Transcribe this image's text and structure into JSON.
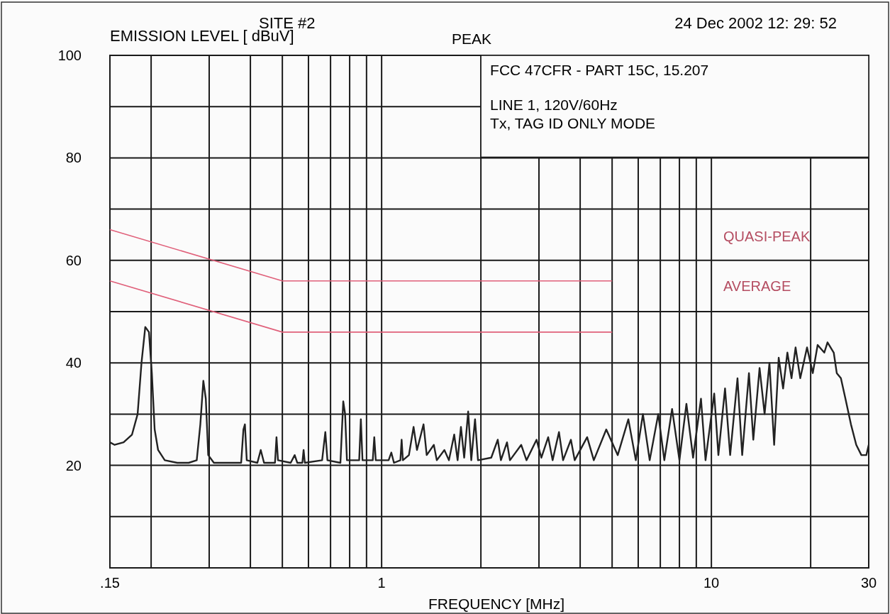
{
  "chart_data": {
    "type": "line",
    "title": "SITE #2",
    "ylabel": "EMISSION LEVEL [  dBuV]",
    "xlabel": "FREQUENCY  [MHz]",
    "annotations": [
      "PEAK",
      "24 Dec 2002    12: 29: 52",
      "FCC 47CFR - PART 15C, 15.207",
      "LINE 1, 120V/60Hz",
      "Tx, TAG ID ONLY MODE"
    ],
    "log": "x",
    "grid": true,
    "legend": "right",
    "marker": "none",
    "line_style": "solid",
    "xlim": [
      0.15,
      30
    ],
    "xticks": [
      {
        "value": 0.15,
        "label": ".15"
      },
      {
        "value": 0.2,
        "label": null
      },
      {
        "value": 0.3,
        "label": null
      },
      {
        "value": 0.4,
        "label": null
      },
      {
        "value": 0.5,
        "label": null
      },
      {
        "value": 0.6,
        "label": null
      },
      {
        "value": 0.7,
        "label": null
      },
      {
        "value": 0.8,
        "label": null
      },
      {
        "value": 0.9,
        "label": null
      },
      1,
      {
        "value": 2,
        "label": null
      },
      {
        "value": 3,
        "label": null
      },
      {
        "value": 4,
        "label": null
      },
      {
        "value": 5,
        "label": null
      },
      {
        "value": 6,
        "label": null
      },
      {
        "value": 7,
        "label": null
      },
      {
        "value": 8,
        "label": null
      },
      {
        "value": 9,
        "label": null
      },
      10,
      {
        "value": 20,
        "label": null
      },
      30
    ],
    "ylim": [
      0,
      100
    ],
    "yticks": [
      {
        "value": 0,
        "label": null
      },
      {
        "value": 10,
        "label": null
      },
      20,
      {
        "value": 30,
        "label": null
      },
      40,
      {
        "value": 50,
        "label": null
      },
      60,
      {
        "value": 70,
        "label": null
      },
      80,
      {
        "value": 90,
        "label": null
      },
      100
    ],
    "series": [
      {
        "color": "#222222",
        "x": [
          0.15,
          0.155,
          0.165,
          0.175,
          0.182,
          0.187,
          0.192,
          0.197,
          0.201,
          0.205,
          0.21,
          0.22,
          0.24,
          0.26,
          0.275,
          0.282,
          0.288,
          0.293,
          0.298,
          0.31,
          0.34,
          0.375,
          0.381,
          0.385,
          0.39,
          0.42,
          0.43,
          0.44,
          0.475,
          0.48,
          0.485,
          0.53,
          0.545,
          0.555,
          0.575,
          0.58,
          0.585,
          0.66,
          0.675,
          0.685,
          0.75,
          0.765,
          0.775,
          0.785,
          0.855,
          0.865,
          0.875,
          0.94,
          0.95,
          0.96,
          1.05,
          1.07,
          1.09,
          1.14,
          1.15,
          1.16,
          1.21,
          1.25,
          1.28,
          1.34,
          1.37,
          1.44,
          1.47,
          1.55,
          1.6,
          1.66,
          1.7,
          1.74,
          1.78,
          1.83,
          1.87,
          1.92,
          1.96,
          2.15,
          2.25,
          2.3,
          2.4,
          2.45,
          2.65,
          2.75,
          2.95,
          3.05,
          3.2,
          3.3,
          3.45,
          3.55,
          3.75,
          3.85,
          4.2,
          4.4,
          4.8,
          5.2,
          5.6,
          5.9,
          6.2,
          6.5,
          6.9,
          7.2,
          7.6,
          8,
          8.4,
          8.8,
          9.3,
          9.6,
          10.2,
          10.5,
          11,
          11.4,
          12,
          12.4,
          13,
          13.4,
          14,
          14.5,
          15,
          15.5,
          16,
          16.5,
          17,
          17.5,
          18,
          18.6,
          19.5,
          20.3,
          21,
          22,
          22.5,
          23.5,
          24,
          24.7,
          25.5,
          26.5,
          27.5,
          28.5,
          29.5,
          30
        ],
        "values": [
          24.5,
          24,
          24.5,
          26,
          30,
          40,
          47,
          46,
          38,
          27,
          23,
          21,
          20.5,
          20.5,
          21,
          28,
          36.5,
          33,
          22,
          20.5,
          20.5,
          20.5,
          27,
          28,
          21,
          20.5,
          23,
          20.5,
          20.5,
          25.5,
          21,
          20.5,
          22,
          20.5,
          20.5,
          23,
          20.5,
          21,
          26.5,
          21,
          20.5,
          32.5,
          30,
          21,
          21,
          29,
          21,
          21,
          25.5,
          21,
          21,
          22.5,
          20.5,
          21,
          25,
          21,
          22,
          27.5,
          23,
          28,
          22,
          24,
          21,
          23,
          21,
          26,
          21,
          27.5,
          21.5,
          30.5,
          21,
          29,
          21,
          21.5,
          25,
          21,
          24.5,
          21,
          24,
          21,
          25,
          21.5,
          25.5,
          21,
          26.5,
          21,
          25,
          21,
          25.5,
          21,
          27,
          22,
          29,
          21,
          30,
          21,
          30,
          21,
          31,
          21,
          32,
          21.5,
          33,
          21,
          34,
          22,
          35,
          22,
          37,
          22,
          38,
          25,
          39,
          30,
          40,
          24,
          41,
          35,
          42,
          37,
          43,
          37,
          43,
          38,
          43.5,
          42,
          44,
          42,
          38,
          37,
          33,
          28,
          24,
          22,
          22,
          24
        ]
      },
      {
        "name": "QUASI-PEAK",
        "color": "#e0607a",
        "x": [
          0.15,
          0.5,
          5
        ],
        "values": [
          66,
          56,
          56
        ]
      },
      {
        "name": "AVERAGE",
        "color": "#e0607a",
        "x": [
          0.15,
          0.5,
          5
        ],
        "values": [
          56,
          46,
          46
        ]
      }
    ]
  }
}
